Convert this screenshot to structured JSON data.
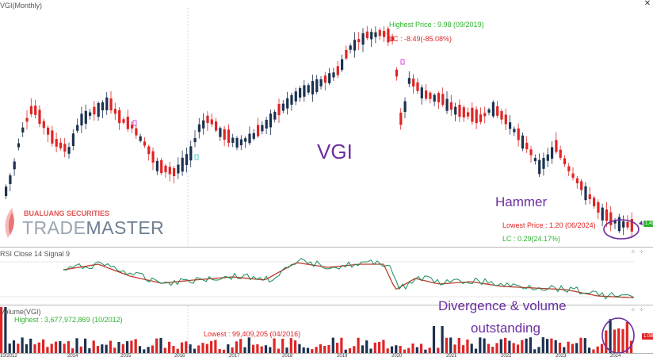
{
  "main_panel": {
    "title": "VGI(Monthly)",
    "symbol_watermark": "VGI",
    "highest_label": "Highest Price : 9.98 (09/2019)",
    "lc_top_label": "LC : -8.49(-85.08%)",
    "lowest_label": "Lowest Price : 1.20 (06/2024)",
    "lc_bottom_label": "LC : 0.29(24.17%)",
    "hammer_note": "Hammer",
    "price_badge": "1.49",
    "close_icon": "close-icon"
  },
  "brand": {
    "line1": "BUALUANG SECURITIES",
    "line2_a": "TRADE",
    "line2_b": "MASTER"
  },
  "rsi_panel": {
    "title": "RSI Close 14 Signal 9"
  },
  "volume_panel": {
    "title": "Volume(VGI)",
    "highest_label": "Highest : 3,677,972,869 (10/2012)",
    "lowest_label": "Lowest : 99,409,205 (04/2016)",
    "note_line1": "Divergence & volume",
    "note_line2": "outstanding",
    "vol_badge": "1.0B"
  },
  "x_axis": {
    "labels": [
      "10/2012",
      "2014",
      "2015",
      "2016",
      "2017",
      "2018",
      "2019",
      "2020",
      "2021",
      "2022",
      "2023",
      "2024"
    ]
  },
  "colors": {
    "up": "#1c3150",
    "down": "#e02424",
    "highest": "#2db52d",
    "lowest": "#e02424",
    "note": "#6b2fa0",
    "rsi": "#1a8a5a",
    "signal": "#c0392b"
  }
}
